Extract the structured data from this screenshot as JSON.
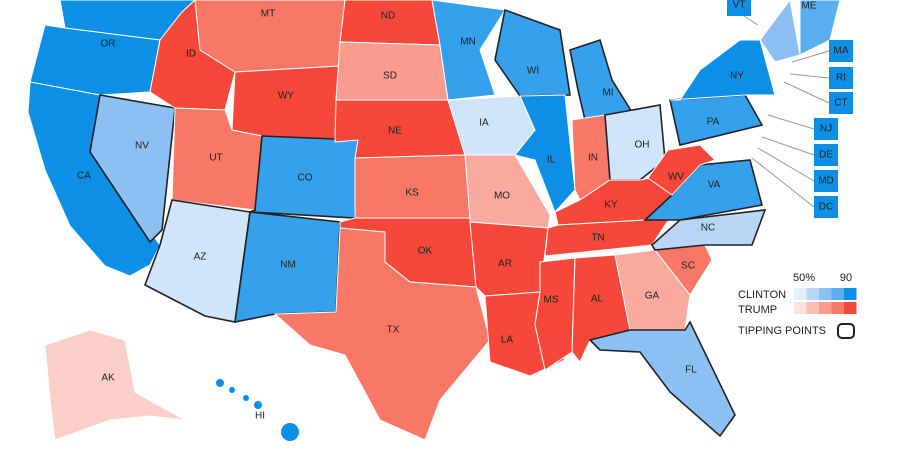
{
  "map": {
    "states": [
      {
        "label": "OR",
        "color": "#0d8fe6",
        "tipping_point": false
      },
      {
        "label": "CA",
        "color": "#0d8fe6",
        "tipping_point": false
      },
      {
        "label": "NV",
        "color": "#8cc0f3",
        "tipping_point": true
      },
      {
        "label": "ID",
        "color": "#f5483a",
        "tipping_point": false
      },
      {
        "label": "MT",
        "color": "#f87868",
        "tipping_point": false
      },
      {
        "label": "WY",
        "color": "#f5483a",
        "tipping_point": false
      },
      {
        "label": "UT",
        "color": "#f87868",
        "tipping_point": false
      },
      {
        "label": "CO",
        "color": "#35a0ec",
        "tipping_point": true
      },
      {
        "label": "AZ",
        "color": "#d0e4fa",
        "tipping_point": true
      },
      {
        "label": "NM",
        "color": "#35a0ec",
        "tipping_point": true
      },
      {
        "label": "ND",
        "color": "#f5483a",
        "tipping_point": false
      },
      {
        "label": "SD",
        "color": "#f99b8e",
        "tipping_point": false
      },
      {
        "label": "NE",
        "color": "#f5483a",
        "tipping_point": false
      },
      {
        "label": "KS",
        "color": "#f87868",
        "tipping_point": false
      },
      {
        "label": "OK",
        "color": "#f5483a",
        "tipping_point": false
      },
      {
        "label": "TX",
        "color": "#f87868",
        "tipping_point": false
      },
      {
        "label": "MN",
        "color": "#35a0ec",
        "tipping_point": false
      },
      {
        "label": "IA",
        "color": "#d0e4fa",
        "tipping_point": false
      },
      {
        "label": "MO",
        "color": "#f9a99e",
        "tipping_point": false
      },
      {
        "label": "AR",
        "color": "#f5483a",
        "tipping_point": false
      },
      {
        "label": "LA",
        "color": "#f5483a",
        "tipping_point": false
      },
      {
        "label": "WI",
        "color": "#35a0ec",
        "tipping_point": true
      },
      {
        "label": "IL",
        "color": "#0d8fe6",
        "tipping_point": false
      },
      {
        "label": "MI",
        "color": "#35a0ec",
        "tipping_point": true
      },
      {
        "label": "IN",
        "color": "#f87868",
        "tipping_point": false
      },
      {
        "label": "OH",
        "color": "#d0e4fa",
        "tipping_point": true
      },
      {
        "label": "KY",
        "color": "#f5483a",
        "tipping_point": false
      },
      {
        "label": "TN",
        "color": "#f5483a",
        "tipping_point": false
      },
      {
        "label": "MS",
        "color": "#f5483a",
        "tipping_point": false
      },
      {
        "label": "AL",
        "color": "#f5483a",
        "tipping_point": false
      },
      {
        "label": "GA",
        "color": "#f9a99e",
        "tipping_point": false
      },
      {
        "label": "SC",
        "color": "#f87868",
        "tipping_point": false
      },
      {
        "label": "NC",
        "color": "#b9d6f7",
        "tipping_point": true
      },
      {
        "label": "VA",
        "color": "#35a0ec",
        "tipping_point": true
      },
      {
        "label": "WV",
        "color": "#f5483a",
        "tipping_point": false
      },
      {
        "label": "FL",
        "color": "#8cc0f3",
        "tipping_point": true
      },
      {
        "label": "PA",
        "color": "#35a0ec",
        "tipping_point": true
      },
      {
        "label": "NY",
        "color": "#0d8fe6",
        "tipping_point": false
      },
      {
        "label": "ME",
        "color": "#5aaeef",
        "tipping_point": false
      },
      {
        "label": "AK",
        "color": "#fcd0c8",
        "tipping_point": false
      },
      {
        "label": "HI",
        "color": "#0d8fe6",
        "tipping_point": false
      },
      {
        "label": "VT",
        "color": "#0d8fe6",
        "tipping_point": false
      },
      {
        "label": "MA",
        "color": "#0d8fe6",
        "tipping_point": false
      },
      {
        "label": "RI",
        "color": "#0d8fe6",
        "tipping_point": false
      },
      {
        "label": "CT",
        "color": "#0d8fe6",
        "tipping_point": false
      },
      {
        "label": "NJ",
        "color": "#0d8fe6",
        "tipping_point": false
      },
      {
        "label": "DE",
        "color": "#0d8fe6",
        "tipping_point": false
      },
      {
        "label": "MD",
        "color": "#0d8fe6",
        "tipping_point": false
      },
      {
        "label": "DC",
        "color": "#0d8fe6",
        "tipping_point": false
      }
    ],
    "legend": {
      "low_label": "50%",
      "high_label": "90",
      "clinton": "CLINTON",
      "trump": "TRUMP",
      "tipping_points": "TIPPING POINTS",
      "clinton_colors": [
        "#e3effc",
        "#b9d6f7",
        "#8cc0f3",
        "#5aaeef",
        "#0d8fe6"
      ],
      "trump_colors": [
        "#fde3de",
        "#fbbdb3",
        "#f99b8e",
        "#f87868",
        "#f5483a"
      ]
    }
  }
}
